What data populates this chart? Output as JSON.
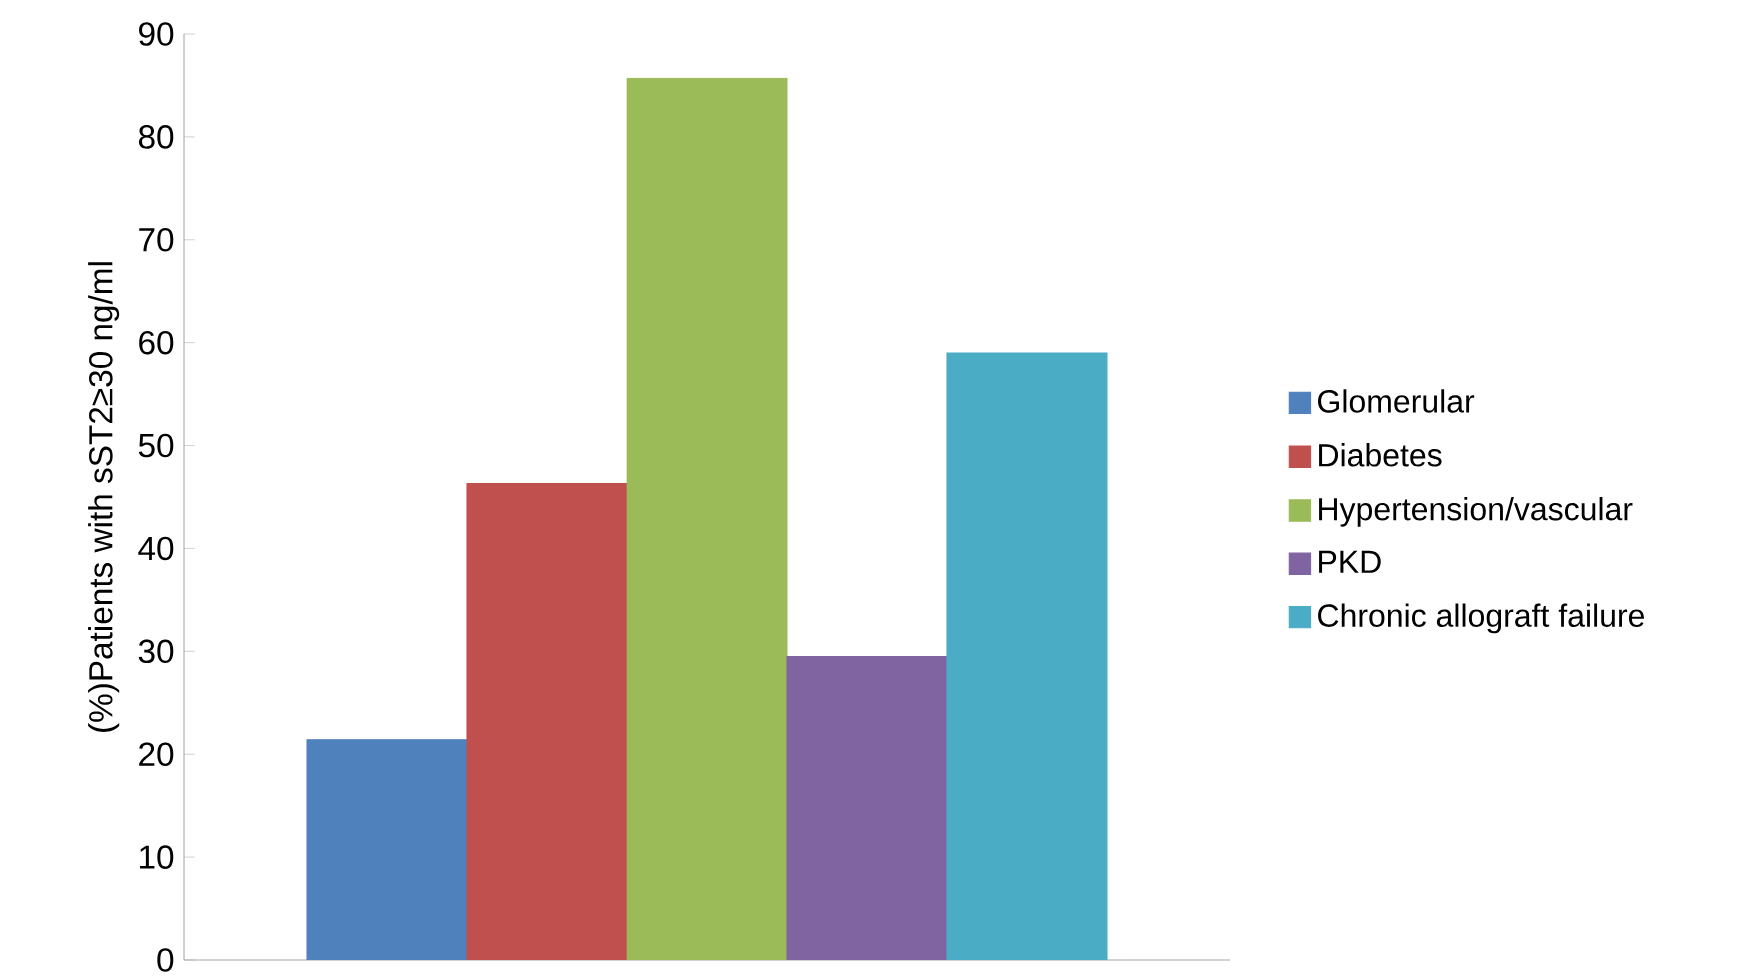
{
  "chart_data": {
    "type": "bar",
    "ylabel": "(%)Patients with sST2≥30 ng/ml",
    "categories": [
      null
    ],
    "series": [
      {
        "name": "Glomerular",
        "color": "#4f81bd",
        "values": [
          21.4
        ]
      },
      {
        "name": "Diabetes",
        "color": "#c0504d",
        "values": [
          46.3
        ]
      },
      {
        "name": "Hypertension/vascular",
        "color": "#9bbb59",
        "values": [
          85.7
        ]
      },
      {
        "name": "PKD",
        "color": "#8064a2",
        "values": [
          29.5
        ]
      },
      {
        "name": "Chronic allograft failure",
        "color": "#4bacc6",
        "values": [
          59.0
        ]
      }
    ],
    "ylim": [
      0,
      90
    ],
    "yticks": [
      0,
      10,
      20,
      30,
      40,
      50,
      60,
      70,
      80,
      90
    ],
    "grid": false,
    "legend": "right"
  }
}
